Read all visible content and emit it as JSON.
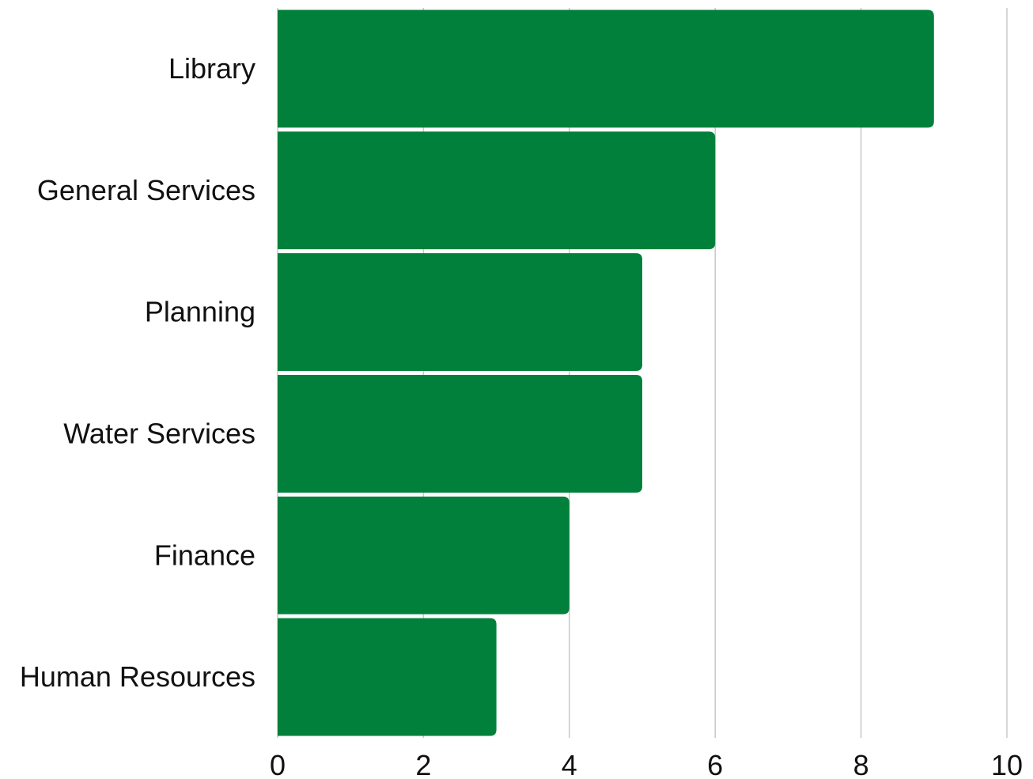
{
  "chart_data": {
    "type": "bar",
    "orientation": "horizontal",
    "categories": [
      "Library",
      "General Services",
      "Planning",
      "Water Services",
      "Finance",
      "Human Resources"
    ],
    "values": [
      9,
      6,
      5,
      5,
      4,
      3
    ],
    "xlim": [
      0,
      10
    ],
    "x_ticks": [
      0,
      2,
      4,
      6,
      8,
      10
    ],
    "tick_labels": [
      "0",
      "2",
      "4",
      "6",
      "8",
      "10"
    ],
    "title": "",
    "xlabel": "",
    "ylabel": "",
    "grid": "vertical",
    "legend": "none",
    "bar_color": "#00803a",
    "grid_color": "#c8c8c8"
  }
}
